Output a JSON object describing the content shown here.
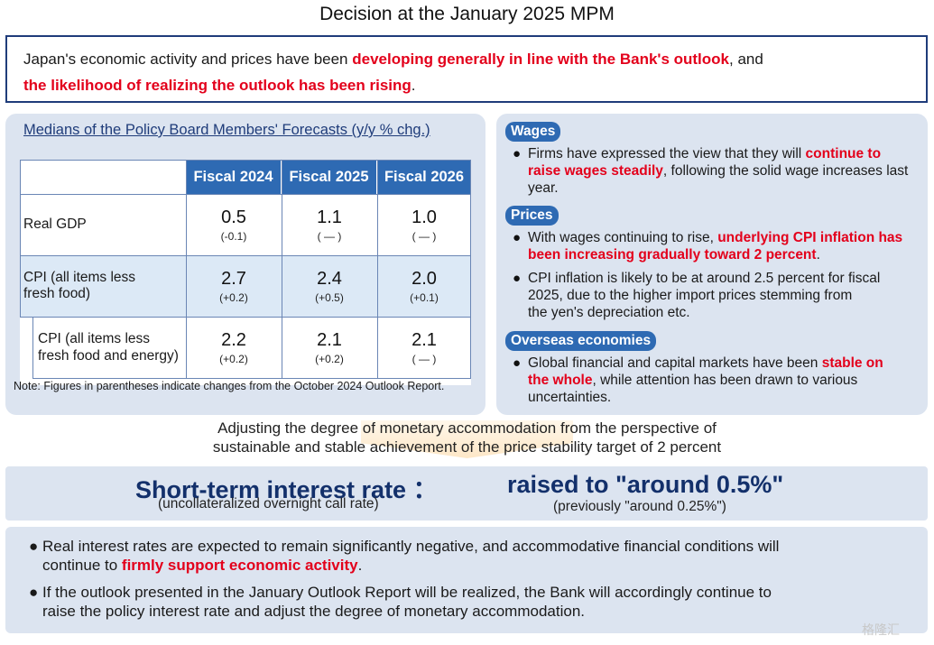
{
  "title": "Decision at the January 2025 MPM",
  "summary": {
    "p1": "Japan's economic activity and prices have been ",
    "p1_red": "developing generally in line with the Bank's outlook",
    "p1_end": ", and",
    "p2_red": "the likelihood of realizing the outlook has been rising",
    "p2_end": "."
  },
  "forecasts": {
    "title": "Medians of the Policy Board Members' Forecasts (y/y % chg.)",
    "columns": [
      "Fiscal 2024",
      "Fiscal 2025",
      "Fiscal 2026"
    ],
    "rows": [
      {
        "label": "Real GDP",
        "values": [
          "0.5",
          "1.1",
          "1.0"
        ],
        "changes": [
          "(-0.1)",
          "( — )",
          "( — )"
        ]
      },
      {
        "label_line1": "CPI (all items less",
        "label_line2": "fresh food)",
        "values": [
          "2.7",
          "2.4",
          "2.0"
        ],
        "changes": [
          "(+0.2)",
          "(+0.5)",
          "(+0.1)"
        ]
      },
      {
        "label_line1": "CPI (all items less",
        "label_line2": "fresh food and energy)",
        "values": [
          "2.2",
          "2.1",
          "2.1"
        ],
        "changes": [
          "(+0.2)",
          "(+0.2)",
          "( — )"
        ]
      }
    ],
    "note": "Note: Figures in parentheses indicate changes from the October 2024 Outlook Report."
  },
  "wages": {
    "heading": "Wages",
    "bullet_a": "Firms have expressed the view that they will ",
    "bullet_red": "continue to",
    "bullet_red2": "raise wages steadily",
    "bullet_b": ", following the solid wage increases last",
    "bullet_c": "year."
  },
  "prices": {
    "heading": "Prices",
    "b1_a": "With wages continuing to rise, ",
    "b1_red": "underlying CPI inflation has",
    "b1_red2": "been increasing gradually toward 2 percent",
    "b1_end": ".",
    "b2_l1": "CPI inflation is likely to be at around 2.5 percent for fiscal",
    "b2_l2": "2025, due to the higher import prices stemming from",
    "b2_l3": "the yen's depreciation etc."
  },
  "overseas": {
    "heading": "Overseas economies",
    "b_a": "Global financial and capital markets have been ",
    "b_red": "stable on",
    "b_red2": "the whole",
    "b_b": ", while attention has been drawn to various",
    "b_c": "uncertainties."
  },
  "adjusting": {
    "line1": "Adjusting the degree of monetary accommodation from the perspective of",
    "line2": "sustainable and stable achievement of the price stability target of 2 percent"
  },
  "rate": {
    "label": "Short-term interest rate ：",
    "sublabel": "(uncollateralized overnight call rate)",
    "value": "raised to \"around 0.5%\"",
    "previous": "(previously \"around 0.25%\")"
  },
  "bottom": {
    "b1_a": "Real interest rates are expected to remain significantly negative, and accommodative financial conditions will",
    "b1_b": "continue to ",
    "b1_red": "firmly support economic activity",
    "b1_end": ".",
    "b2_l1": "If the outlook presented in the January Outlook Report will be realized, the Bank will accordingly continue to",
    "b2_l2": "raise the policy interest rate and adjust the degree of monetary accommodation."
  },
  "bullet_glyph": "●",
  "watermark": "格隆汇",
  "colors": {
    "navy": "#1f3c7a",
    "accent_blue": "#2e6ab3",
    "red": "#e3001b",
    "panel_bg": "#dce4f0"
  }
}
